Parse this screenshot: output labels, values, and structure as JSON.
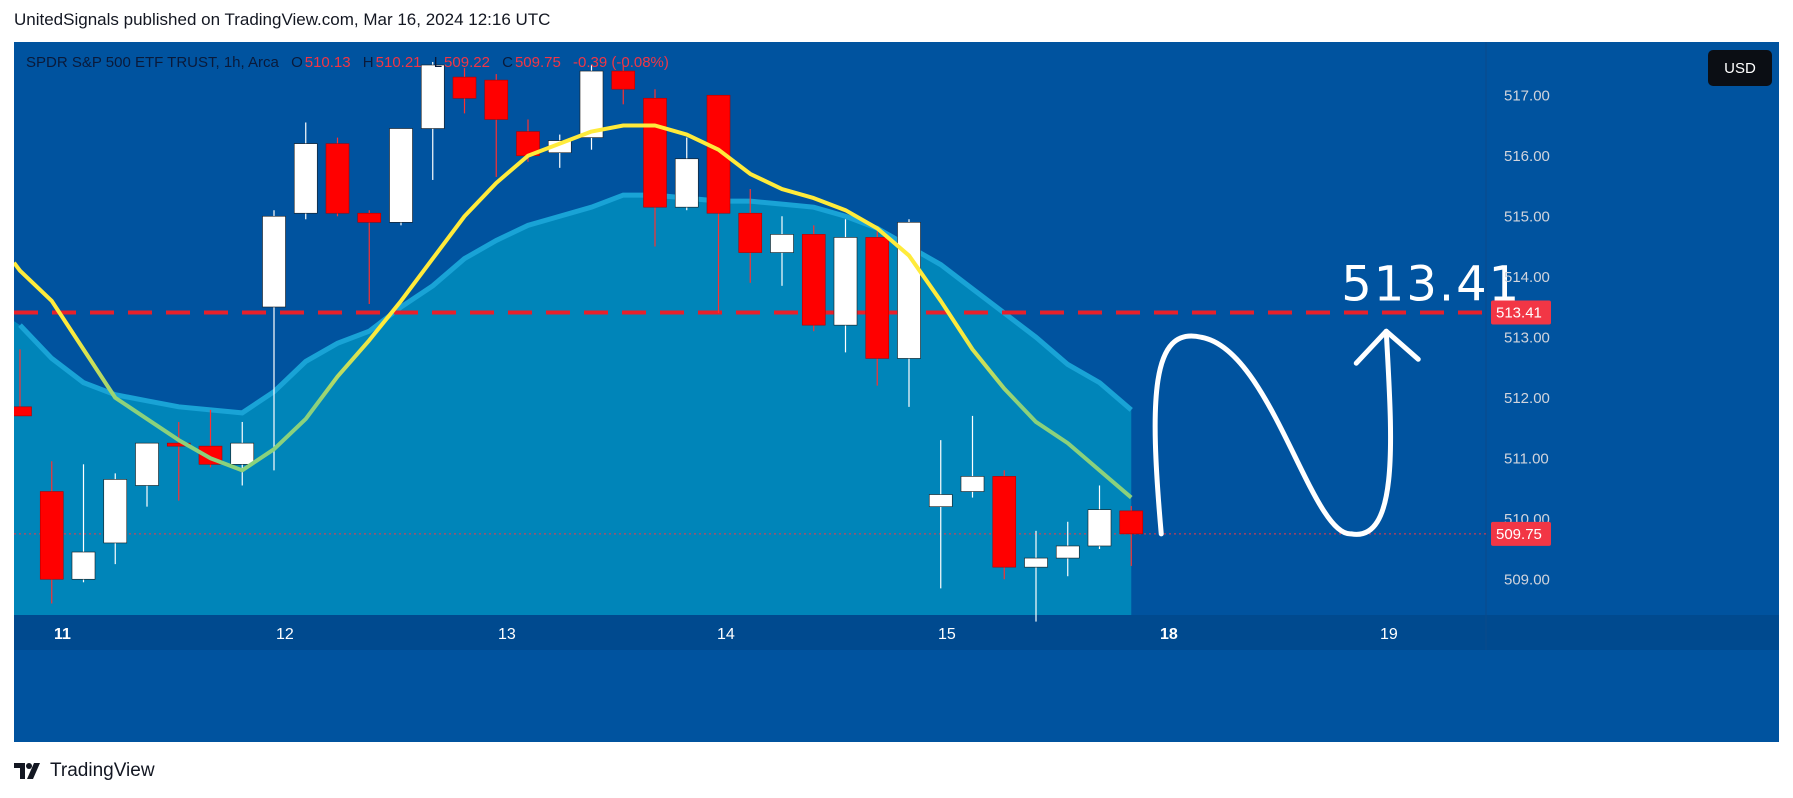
{
  "header": {
    "publisher_line": "UnitedSignals published on TradingView.com, Mar 16, 2024 12:16 UTC"
  },
  "legend": {
    "symbol": "SPDR S&P 500 ETF TRUST, 1h, Arca",
    "o_label": "O",
    "o_value": "510.13",
    "h_label": "H",
    "h_value": "510.21",
    "l_label": "L",
    "l_value": "509.22",
    "c_label": "C",
    "c_value": "509.75",
    "change": "-0.39 (-0.08%)"
  },
  "currency_button": "USD",
  "brand": {
    "name": "TradingView",
    "logo_icon": "tradingview-logo-icon"
  },
  "colors": {
    "background": "#00539f",
    "bottom_band": "#004a8f",
    "area_fill": "#0085b9",
    "area_line": "#19a3d6",
    "up_candle": "#ffffff",
    "down_candle": "#ff0000",
    "ma_line_high": "#ffeb3b",
    "ma_line_low": "#8bd17c",
    "level_line": "#e8202a",
    "price_badge": "#f23645"
  },
  "chart_data": {
    "type": "candlestick",
    "timeframe": "1h",
    "x_tick_labels": [
      "11",
      "12",
      "13",
      "14",
      "15",
      "18",
      "19"
    ],
    "y_ticks": [
      509,
      510,
      511,
      512,
      513,
      514,
      515,
      516,
      517
    ],
    "y_tick_labels": [
      "509.00",
      "510.00",
      "511.00",
      "512.00",
      "513.00",
      "514.00",
      "515.00",
      "516.00",
      "517.00"
    ],
    "ylim": [
      508.2,
      517.5
    ],
    "candles": [
      {
        "o": 511.85,
        "h": 512.8,
        "l": 511.7,
        "c": 511.7
      },
      {
        "o": 510.45,
        "h": 510.95,
        "l": 508.6,
        "c": 509.0
      },
      {
        "o": 509.0,
        "h": 510.9,
        "l": 508.95,
        "c": 509.45
      },
      {
        "o": 509.6,
        "h": 510.75,
        "l": 509.25,
        "c": 510.65
      },
      {
        "o": 510.55,
        "h": 511.25,
        "l": 510.2,
        "c": 511.25
      },
      {
        "o": 511.25,
        "h": 511.6,
        "l": 510.3,
        "c": 511.2
      },
      {
        "o": 511.2,
        "h": 511.8,
        "l": 510.85,
        "c": 510.9
      },
      {
        "o": 510.9,
        "h": 511.6,
        "l": 510.55,
        "c": 511.25
      },
      {
        "o": 513.5,
        "h": 515.1,
        "l": 510.8,
        "c": 515.0
      },
      {
        "o": 515.05,
        "h": 516.55,
        "l": 514.95,
        "c": 516.2
      },
      {
        "o": 516.2,
        "h": 516.3,
        "l": 515.0,
        "c": 515.05
      },
      {
        "o": 515.05,
        "h": 515.1,
        "l": 513.55,
        "c": 514.9
      },
      {
        "o": 514.9,
        "h": 516.45,
        "l": 514.85,
        "c": 516.45
      },
      {
        "o": 516.45,
        "h": 517.55,
        "l": 515.6,
        "c": 517.5
      },
      {
        "o": 517.3,
        "h": 517.45,
        "l": 516.7,
        "c": 516.95
      },
      {
        "o": 517.25,
        "h": 517.35,
        "l": 515.65,
        "c": 516.6
      },
      {
        "o": 516.4,
        "h": 516.6,
        "l": 515.9,
        "c": 516.0
      },
      {
        "o": 516.05,
        "h": 516.35,
        "l": 515.8,
        "c": 516.25
      },
      {
        "o": 516.3,
        "h": 517.5,
        "l": 516.1,
        "c": 517.4
      },
      {
        "o": 517.4,
        "h": 517.5,
        "l": 516.85,
        "c": 517.1
      },
      {
        "o": 516.95,
        "h": 517.1,
        "l": 514.5,
        "c": 515.15
      },
      {
        "o": 515.15,
        "h": 516.3,
        "l": 515.1,
        "c": 515.95
      },
      {
        "o": 517.0,
        "h": 517.0,
        "l": 513.4,
        "c": 515.05
      },
      {
        "o": 515.05,
        "h": 515.45,
        "l": 513.9,
        "c": 514.4
      },
      {
        "o": 514.4,
        "h": 515.0,
        "l": 513.85,
        "c": 514.7
      },
      {
        "o": 514.7,
        "h": 514.85,
        "l": 513.1,
        "c": 513.2
      },
      {
        "o": 513.2,
        "h": 514.95,
        "l": 512.75,
        "c": 514.65
      },
      {
        "o": 514.65,
        "h": 514.75,
        "l": 512.2,
        "c": 512.65
      },
      {
        "o": 512.65,
        "h": 514.95,
        "l": 511.85,
        "c": 514.9
      },
      {
        "o": 510.2,
        "h": 511.3,
        "l": 508.85,
        "c": 510.4
      },
      {
        "o": 510.45,
        "h": 511.7,
        "l": 510.35,
        "c": 510.7
      },
      {
        "o": 510.7,
        "h": 510.8,
        "l": 509.0,
        "c": 509.2
      },
      {
        "o": 509.2,
        "h": 509.8,
        "l": 508.3,
        "c": 509.35
      },
      {
        "o": 509.35,
        "h": 509.95,
        "l": 509.05,
        "c": 509.55
      },
      {
        "o": 509.55,
        "h": 510.55,
        "l": 509.5,
        "c": 510.15
      },
      {
        "o": 510.13,
        "h": 510.21,
        "l": 509.22,
        "c": 509.75
      }
    ],
    "ma_line": [
      514.1,
      513.6,
      512.8,
      512.0,
      511.65,
      511.3,
      511.0,
      510.8,
      511.15,
      511.65,
      512.35,
      512.95,
      513.6,
      514.3,
      515.0,
      515.55,
      516.0,
      516.2,
      516.4,
      516.5,
      516.5,
      516.35,
      516.1,
      515.7,
      515.45,
      515.3,
      515.1,
      514.8,
      514.35,
      513.6,
      512.8,
      512.15,
      511.6,
      511.25,
      510.8,
      510.35
    ],
    "area_line": [
      513.2,
      512.65,
      512.25,
      512.05,
      511.95,
      511.85,
      511.8,
      511.75,
      512.1,
      512.6,
      512.9,
      513.1,
      513.5,
      513.85,
      514.3,
      514.6,
      514.85,
      515.0,
      515.15,
      515.35,
      515.35,
      515.3,
      515.25,
      515.25,
      515.2,
      515.15,
      515.0,
      514.8,
      514.5,
      514.2,
      513.8,
      513.4,
      513.0,
      512.55,
      512.25,
      511.8
    ],
    "level_line": 513.41,
    "current_price": "509.75",
    "level_label": "513.41",
    "annotation_text": "513.41"
  }
}
